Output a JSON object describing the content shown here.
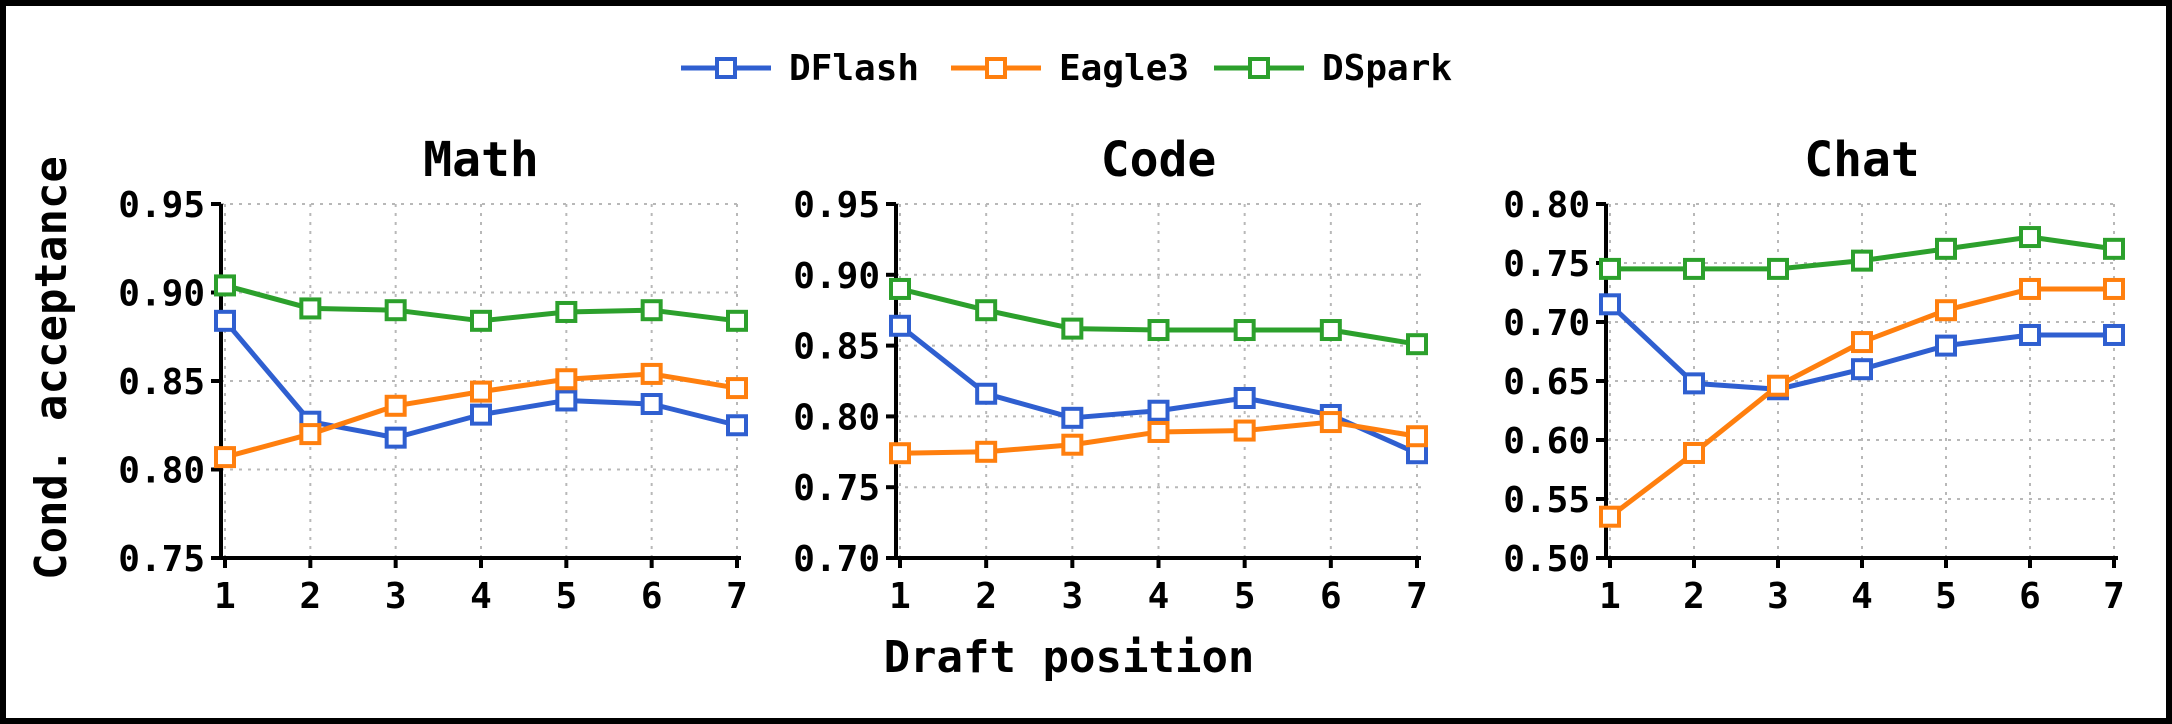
{
  "chart_data": {
    "type": "line",
    "xlabel": "Draft position",
    "ylabel": "Cond. acceptance",
    "legend": {
      "placement": "top-center",
      "entries": [
        {
          "name": "DFlash",
          "color": "#2f5fd0"
        },
        {
          "name": "Eagle3",
          "color": "#ff7f0e"
        },
        {
          "name": "DSpark",
          "color": "#2ca02c"
        }
      ]
    },
    "grid": true,
    "marker": "open-square",
    "panels": [
      {
        "title": "Math",
        "x": [
          1,
          2,
          3,
          4,
          5,
          6,
          7
        ],
        "ylim": [
          0.75,
          0.95
        ],
        "yticks": [
          "0.75",
          "0.80",
          "0.85",
          "0.90",
          "0.95"
        ],
        "series": [
          {
            "name": "DFlash",
            "values": [
              0.884,
              0.827,
              0.818,
              0.831,
              0.839,
              0.837,
              0.825
            ]
          },
          {
            "name": "Eagle3",
            "values": [
              0.807,
              0.82,
              0.836,
              0.844,
              0.851,
              0.854,
              0.846
            ]
          },
          {
            "name": "DSpark",
            "values": [
              0.904,
              0.891,
              0.89,
              0.884,
              0.889,
              0.89,
              0.884
            ]
          }
        ]
      },
      {
        "title": "Code",
        "x": [
          1,
          2,
          3,
          4,
          5,
          6,
          7
        ],
        "ylim": [
          0.7,
          0.95
        ],
        "yticks": [
          "0.70",
          "0.75",
          "0.80",
          "0.85",
          "0.90",
          "0.95"
        ],
        "series": [
          {
            "name": "DFlash",
            "values": [
              0.864,
              0.816,
              0.799,
              0.804,
              0.813,
              0.801,
              0.774
            ]
          },
          {
            "name": "Eagle3",
            "values": [
              0.774,
              0.775,
              0.78,
              0.789,
              0.79,
              0.796,
              0.786
            ]
          },
          {
            "name": "DSpark",
            "values": [
              0.89,
              0.875,
              0.862,
              0.861,
              0.861,
              0.861,
              0.851
            ]
          }
        ]
      },
      {
        "title": "Chat",
        "x": [
          1,
          2,
          3,
          4,
          5,
          6,
          7
        ],
        "ylim": [
          0.5,
          0.8
        ],
        "yticks": [
          "0.50",
          "0.55",
          "0.60",
          "0.65",
          "0.70",
          "0.75",
          "0.80"
        ],
        "series": [
          {
            "name": "DFlash",
            "values": [
              0.715,
              0.648,
              0.643,
              0.66,
              0.68,
              0.689,
              0.689
            ]
          },
          {
            "name": "Eagle3",
            "values": [
              0.535,
              0.589,
              0.646,
              0.683,
              0.71,
              0.728,
              0.728
            ]
          },
          {
            "name": "DSpark",
            "values": [
              0.745,
              0.745,
              0.745,
              0.752,
              0.762,
              0.772,
              0.762
            ]
          }
        ]
      }
    ]
  }
}
